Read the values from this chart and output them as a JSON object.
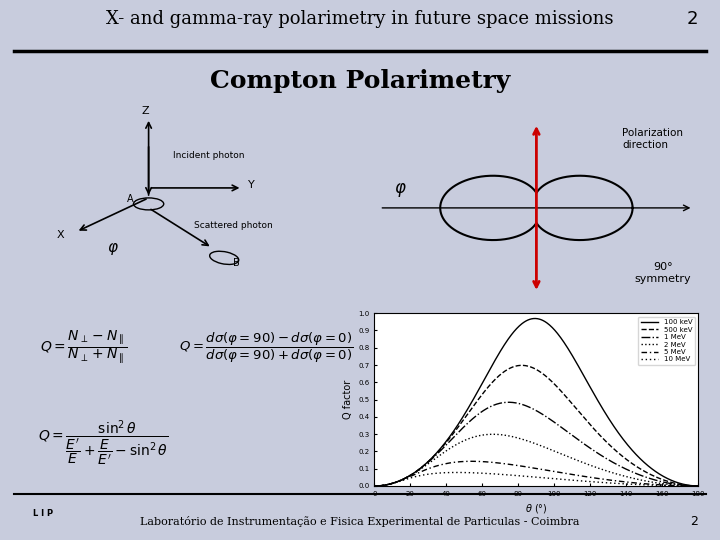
{
  "background_color": "#c8ccdd",
  "title_text": "X- and gamma-ray polarimetry in future space missions",
  "title_number": "2",
  "subtitle_text": "Compton Polarimetry",
  "footer_text": "Laboratório de Instrumentação e Fisica Experimental de Particulas - Coimbra",
  "footer_number": "2",
  "polarization_label": "Polarization\ndirection",
  "phi_label": "φ",
  "symmetry_label": "90°\nsymmetry",
  "formula1": "Q = \\frac{N_{\\perp} - N_{\\parallel}}{N_{\\perp} + N_{\\parallel}}",
  "formula2": "Q = \\frac{d\\sigma(\\varphi=90)-d\\sigma(\\varphi=0)}{d\\sigma(\\varphi=90)+d\\sigma(\\varphi=0)}",
  "formula3": "Q = \\frac{\\sin^2\\theta}{\\frac{E'}{E}+\\frac{E}{E'}-\\sin^2\\theta}",
  "energies": [
    "100 keV",
    "500 keV",
    "1 MeV",
    "2 MeV",
    "5 MeV",
    "10 MeV"
  ],
  "line_styles": [
    "-",
    "--",
    "-.",
    ":",
    "-",
    "--"
  ],
  "panel_bg": "#ffffff",
  "red_color": "#cc0000",
  "black_color": "#000000"
}
